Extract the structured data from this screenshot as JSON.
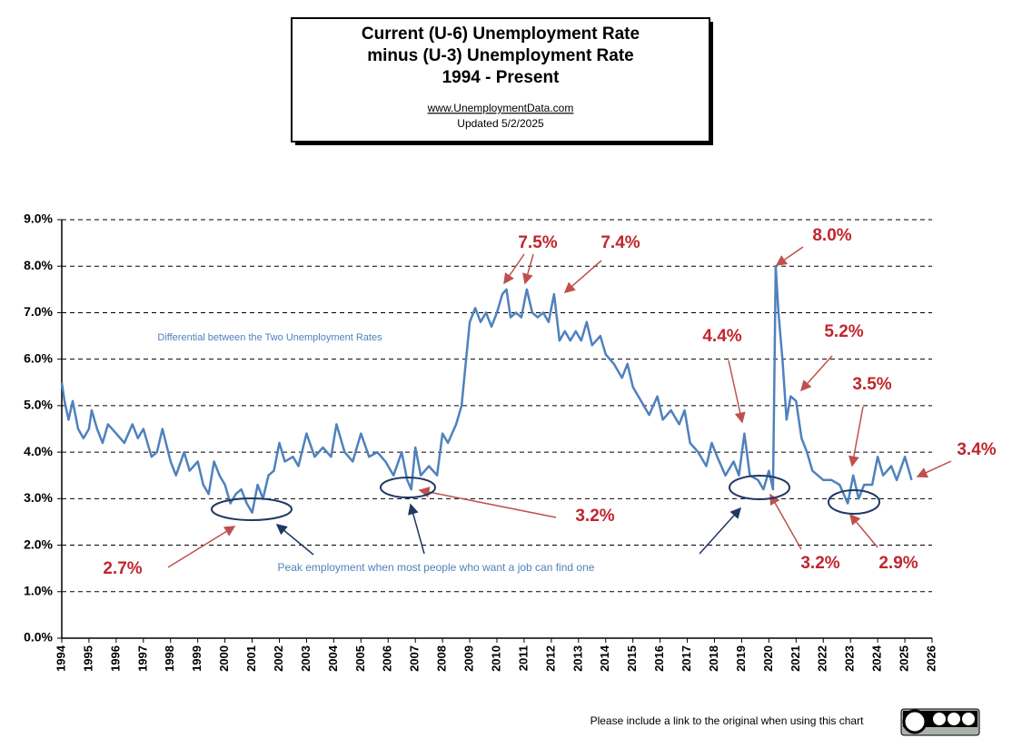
{
  "chart_data": {
    "type": "line",
    "title": [
      "Current (U-6) Unemployment Rate",
      "minus (U-3) Unemployment Rate",
      "1994 - Present"
    ],
    "source": "www.UnemploymentData.com",
    "updated": "Updated  5/2/2025",
    "footer": "Please include a link to the original when using this chart",
    "xlim": [
      1994,
      2026
    ],
    "xticks": [
      1994,
      1995,
      1996,
      1997,
      1998,
      1999,
      2000,
      2001,
      2002,
      2003,
      2004,
      2005,
      2006,
      2007,
      2008,
      2009,
      2010,
      2011,
      2012,
      2013,
      2014,
      2015,
      2016,
      2017,
      2018,
      2019,
      2020,
      2021,
      2022,
      2023,
      2024,
      2025,
      2026
    ],
    "ylim": [
      0,
      9
    ],
    "yticks": [
      {
        "value": 0,
        "label": "0.0%"
      },
      {
        "value": 1,
        "label": "1.0%"
      },
      {
        "value": 2,
        "label": "2.0%"
      },
      {
        "value": 3,
        "label": "3.0%"
      },
      {
        "value": 4,
        "label": "4.0%"
      },
      {
        "value": 5,
        "label": "5.0%"
      },
      {
        "value": 6,
        "label": "6.0%"
      },
      {
        "value": 7,
        "label": "7.0%"
      },
      {
        "value": 8,
        "label": "8.0%"
      },
      {
        "value": 9,
        "label": "9.0%"
      }
    ],
    "grid": true,
    "series": [
      {
        "name": "Differential between the Two Unemployment Rates",
        "color": "#4f81bd",
        "x": [
          1994.0,
          1994.1,
          1994.25,
          1994.4,
          1994.6,
          1994.8,
          1995.0,
          1995.1,
          1995.3,
          1995.5,
          1995.7,
          1996.0,
          1996.3,
          1996.6,
          1996.8,
          1997.0,
          1997.3,
          1997.5,
          1997.7,
          1998.0,
          1998.2,
          1998.5,
          1998.7,
          1999.0,
          1999.2,
          1999.4,
          1999.6,
          1999.8,
          2000.0,
          2000.2,
          2000.4,
          2000.6,
          2000.8,
          2001.0,
          2001.2,
          2001.4,
          2001.6,
          2001.8,
          2002.0,
          2002.2,
          2002.5,
          2002.7,
          2003.0,
          2003.3,
          2003.6,
          2003.9,
          2004.1,
          2004.4,
          2004.7,
          2005.0,
          2005.3,
          2005.6,
          2005.9,
          2006.2,
          2006.5,
          2006.7,
          2006.85,
          2007.0,
          2007.2,
          2007.5,
          2007.8,
          2008.0,
          2008.2,
          2008.5,
          2008.7,
          2008.85,
          2009.0,
          2009.2,
          2009.4,
          2009.6,
          2009.8,
          2010.0,
          2010.2,
          2010.35,
          2010.5,
          2010.7,
          2010.9,
          2011.1,
          2011.3,
          2011.5,
          2011.7,
          2011.9,
          2012.1,
          2012.3,
          2012.5,
          2012.7,
          2012.9,
          2013.1,
          2013.3,
          2013.5,
          2013.8,
          2014.0,
          2014.3,
          2014.6,
          2014.8,
          2015.0,
          2015.3,
          2015.6,
          2015.9,
          2016.1,
          2016.4,
          2016.7,
          2016.9,
          2017.1,
          2017.4,
          2017.7,
          2017.9,
          2018.1,
          2018.4,
          2018.7,
          2018.9,
          2019.1,
          2019.3,
          2019.6,
          2019.8,
          2020.0,
          2020.15,
          2020.25,
          2020.35,
          2020.5,
          2020.65,
          2020.8,
          2021.0,
          2021.2,
          2021.4,
          2021.6,
          2021.8,
          2022.0,
          2022.3,
          2022.6,
          2022.9,
          2023.1,
          2023.3,
          2023.5,
          2023.8,
          2024.0,
          2024.2,
          2024.5,
          2024.7,
          2025.0,
          2025.25
        ],
        "values": [
          5.5,
          5.1,
          4.7,
          5.1,
          4.5,
          4.3,
          4.5,
          4.9,
          4.5,
          4.2,
          4.6,
          4.4,
          4.2,
          4.6,
          4.3,
          4.5,
          3.9,
          4.0,
          4.5,
          3.8,
          3.5,
          4.0,
          3.6,
          3.8,
          3.3,
          3.1,
          3.8,
          3.5,
          3.3,
          2.9,
          3.1,
          3.2,
          2.9,
          2.7,
          3.3,
          3.0,
          3.5,
          3.6,
          4.2,
          3.8,
          3.9,
          3.7,
          4.4,
          3.9,
          4.1,
          3.9,
          4.6,
          4.0,
          3.8,
          4.4,
          3.9,
          4.0,
          3.8,
          3.5,
          4.0,
          3.4,
          3.2,
          4.1,
          3.5,
          3.7,
          3.5,
          4.4,
          4.2,
          4.6,
          5.0,
          5.9,
          6.8,
          7.1,
          6.8,
          7.0,
          6.7,
          7.0,
          7.4,
          7.5,
          6.9,
          7.0,
          6.9,
          7.5,
          7.0,
          6.9,
          7.0,
          6.8,
          7.4,
          6.4,
          6.6,
          6.4,
          6.6,
          6.4,
          6.8,
          6.3,
          6.5,
          6.1,
          5.9,
          5.6,
          5.9,
          5.4,
          5.1,
          4.8,
          5.2,
          4.7,
          4.9,
          4.6,
          4.9,
          4.2,
          4.0,
          3.7,
          4.2,
          3.9,
          3.5,
          3.8,
          3.5,
          4.4,
          3.5,
          3.4,
          3.2,
          3.6,
          3.2,
          8.0,
          7.0,
          6.0,
          4.7,
          5.2,
          5.1,
          4.3,
          4.0,
          3.6,
          3.5,
          3.4,
          3.4,
          3.3,
          2.9,
          3.5,
          3.0,
          3.3,
          3.3,
          3.9,
          3.5,
          3.7,
          3.4,
          3.9,
          3.4
        ]
      }
    ],
    "annotations": [
      {
        "text": "Differential between the Two Unemployment Rates",
        "color": "#4f81bd"
      },
      {
        "text": "Peak employment when most people who want a job can find one",
        "color": "#4f81bd"
      },
      {
        "text": "7.5%",
        "color": "#c0262d"
      },
      {
        "text": "7.4%",
        "color": "#c0262d"
      },
      {
        "text": "8.0%",
        "color": "#c0262d"
      },
      {
        "text": "4.4%",
        "color": "#c0262d"
      },
      {
        "text": "5.2%",
        "color": "#c0262d"
      },
      {
        "text": "3.5%",
        "color": "#c0262d"
      },
      {
        "text": "3.4%",
        "color": "#c0262d"
      },
      {
        "text": "3.2%",
        "color": "#c0262d"
      },
      {
        "text": "2.7%",
        "color": "#c0262d"
      },
      {
        "text": "3.2%",
        "color": "#c0262d"
      },
      {
        "text": "2.9%",
        "color": "#c0262d"
      }
    ]
  }
}
